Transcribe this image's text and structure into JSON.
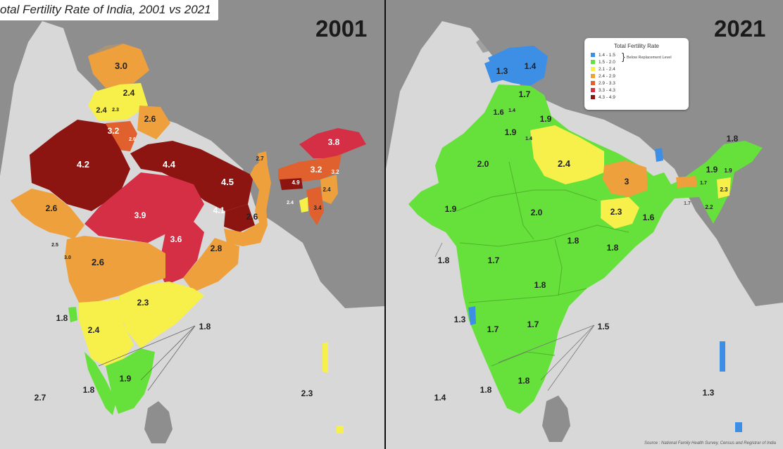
{
  "title": "otal Fertility Rate of India, 2001 vs 2021",
  "colors": {
    "sea": "#d8d8d8",
    "land": "#8e8e8e",
    "below_1_5": "#3d8fe6",
    "from_1_5": "#66e03a",
    "from_2_1": "#f7f04a",
    "from_2_4": "#eda03c",
    "from_2_9": "#e0602e",
    "from_3_3": "#d52f45",
    "from_3_9": "#8c1512"
  },
  "maps": [
    {
      "year": "2001",
      "labels": [
        "3.0",
        "2.4",
        "2.4",
        "2.3",
        "2.6",
        "3.2",
        "2.6",
        "4.2",
        "4.4",
        "4.5",
        "2.7",
        "3.8",
        "3.2",
        "3.2",
        "4.9",
        "2.4",
        "2.4",
        "3.4",
        "2.6",
        "3.9",
        "4.1",
        "2.6",
        "3.6",
        "2.8",
        "2.5",
        "3.0",
        "2.6",
        "2.3",
        "1.8",
        "1.8",
        "2.4",
        "1.9",
        "1.8",
        "2.7",
        "2.3"
      ]
    },
    {
      "year": "2021",
      "labels": [
        "1.3",
        "1.4",
        "1.7",
        "1.6",
        "1.4",
        "1.9",
        "1.9",
        "1.4",
        "2.4",
        "2.0",
        "1.9",
        "3",
        "1.8",
        "1.9",
        "1.7",
        "2.3",
        "2.2",
        "1.9",
        "2.0",
        "2.3",
        "1.6",
        "1.7",
        "1.8",
        "1.8",
        "1.8",
        "1.7",
        "1.8",
        "1.3",
        "1.7",
        "1.7",
        "1.5",
        "1.8",
        "1.8",
        "1.4",
        "1.3"
      ]
    }
  ],
  "legend": {
    "title": "Total Fertility Rate",
    "rows": [
      "1.4 - 1.5",
      "1.5 - 2.0",
      "2.1 - 2.4",
      "2.4 - 2.9",
      "2.9 - 3.3",
      "3.3 - 4.3",
      "4.3 - 4.9"
    ],
    "note": "Below Replacement Level"
  },
  "source": "Source : National Family Health Survey, Census and Registrar of India"
}
